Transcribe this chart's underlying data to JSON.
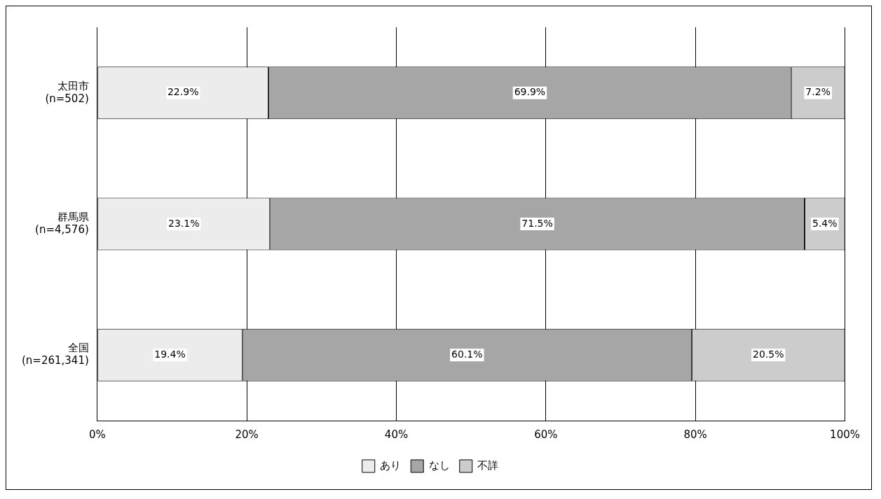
{
  "chart_data": {
    "type": "bar",
    "orientation": "horizontal",
    "stacked": true,
    "categories": [
      "太田市\n(n=502)",
      "群馬県\n(n=4,576)",
      "全国\n(n=261,341)"
    ],
    "series": [
      {
        "name": "あり",
        "color": "#ececec",
        "values": [
          22.9,
          23.1,
          19.4
        ],
        "value_labels": [
          "22.9%",
          "23.1%",
          "19.4%"
        ]
      },
      {
        "name": "なし",
        "color": "#a6a6a6",
        "values": [
          69.9,
          71.5,
          60.1
        ],
        "value_labels": [
          "69.9%",
          "71.5%",
          "60.1%"
        ]
      },
      {
        "name": "不詳",
        "color": "#cccccc",
        "values": [
          7.2,
          5.4,
          20.5
        ],
        "value_labels": [
          "7.2%",
          "5.4%",
          "20.5%"
        ]
      }
    ],
    "xlim": [
      0,
      100
    ],
    "xticks": [
      {
        "value": 0,
        "label": "0%"
      },
      {
        "value": 20,
        "label": "20%"
      },
      {
        "value": 40,
        "label": "40%"
      },
      {
        "value": 60,
        "label": "60%"
      },
      {
        "value": 80,
        "label": "80%"
      },
      {
        "value": 100,
        "label": "100%"
      }
    ],
    "grid": "x",
    "legend": "bottom"
  }
}
